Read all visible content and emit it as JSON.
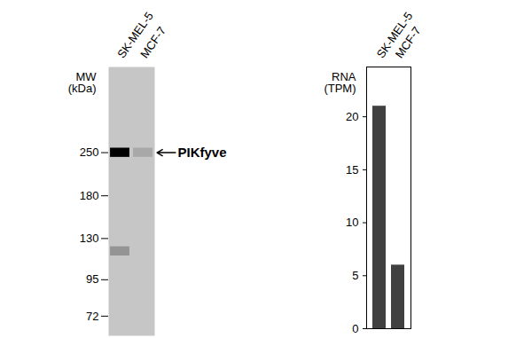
{
  "chart_data": [
    {
      "type": "blot",
      "categories": [
        "SK-MEL-5",
        "MCF-7"
      ],
      "ylabel": "MW\n(kDa)",
      "log": "y",
      "ylim": [
        62,
        480
      ],
      "yticks": [
        250,
        180,
        130,
        95,
        72
      ],
      "bands": [
        {
          "lane": "SK-MEL-5",
          "mw": 250,
          "intensity": 1
        },
        {
          "lane": "MCF-7",
          "mw": 250,
          "intensity": 0.15
        },
        {
          "lane": "SK-MEL-5",
          "mw": 118,
          "intensity": 0.25
        }
      ],
      "annotations": [
        {
          "text": "PIKfyve",
          "y": 250
        }
      ],
      "color": "#000000"
    },
    {
      "type": "bar",
      "categories": [
        "SK-MEL-5",
        "MCF-7"
      ],
      "values": [
        21,
        6
      ],
      "ylabel": "RNA\n(TPM)",
      "ylim": [
        0,
        24.7
      ],
      "yticks": [
        0,
        5,
        10,
        15,
        20
      ],
      "color": "#404040"
    }
  ]
}
